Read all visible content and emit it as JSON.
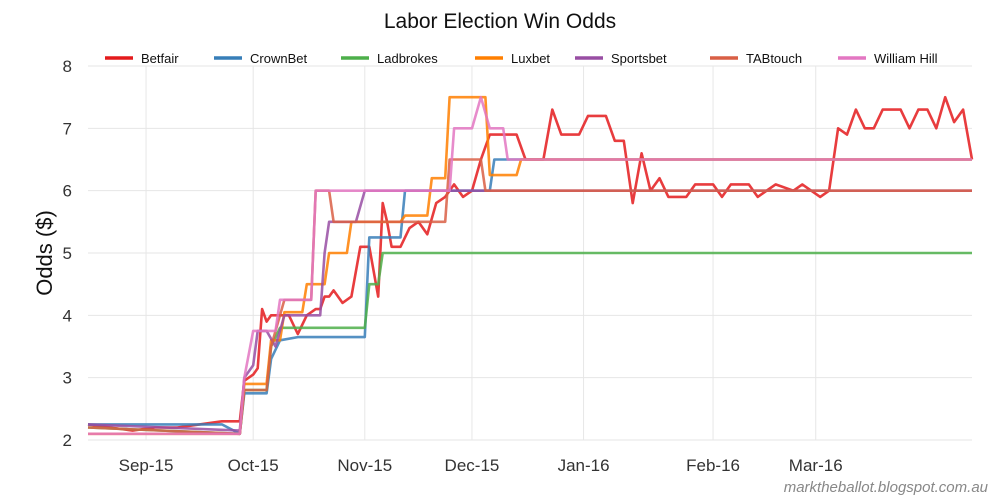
{
  "chart_data": {
    "type": "line",
    "title": "Labor Election Win Odds",
    "xlabel": "",
    "ylabel": "Odds ($)",
    "ylim": [
      2,
      8
    ],
    "yticks": [
      2,
      3,
      4,
      5,
      6,
      7,
      8
    ],
    "ytick_labels": [
      "2",
      "3",
      "4",
      "5",
      "6",
      "7",
      "8"
    ],
    "xlim": [
      0,
      198
    ],
    "xticks": [
      13,
      37,
      62,
      86,
      111,
      140,
      163
    ],
    "xtick_labels": [
      "Sep-15",
      "Oct-15",
      "Nov-15",
      "Dec-15",
      "Jan-16",
      "Feb-16",
      "Mar-16"
    ],
    "grid": true,
    "legend_position": "top",
    "source": "marktheballot.blogspot.com.au",
    "series": [
      {
        "name": "Betfair",
        "color": "#e41a1c",
        "points": [
          [
            0,
            2.25
          ],
          [
            5,
            2.2
          ],
          [
            10,
            2.15
          ],
          [
            15,
            2.2
          ],
          [
            20,
            2.2
          ],
          [
            25,
            2.25
          ],
          [
            30,
            2.3
          ],
          [
            34,
            2.3
          ],
          [
            35,
            2.95
          ],
          [
            36,
            3.0
          ],
          [
            37,
            3.05
          ],
          [
            38,
            3.15
          ],
          [
            39,
            4.1
          ],
          [
            40,
            3.9
          ],
          [
            41,
            4.0
          ],
          [
            45,
            4.0
          ],
          [
            47,
            3.7
          ],
          [
            49,
            4.0
          ],
          [
            51,
            4.1
          ],
          [
            52,
            4.1
          ],
          [
            53,
            4.3
          ],
          [
            54,
            4.3
          ],
          [
            55,
            4.4
          ],
          [
            57,
            4.2
          ],
          [
            59,
            4.3
          ],
          [
            61,
            5.1
          ],
          [
            63,
            5.1
          ],
          [
            65,
            4.3
          ],
          [
            66,
            5.8
          ],
          [
            67,
            5.5
          ],
          [
            68,
            5.1
          ],
          [
            70,
            5.1
          ],
          [
            72,
            5.4
          ],
          [
            74,
            5.5
          ],
          [
            76,
            5.3
          ],
          [
            78,
            5.8
          ],
          [
            80,
            5.9
          ],
          [
            82,
            6.1
          ],
          [
            84,
            5.9
          ],
          [
            86,
            6.0
          ],
          [
            88,
            6.5
          ],
          [
            90,
            6.9
          ],
          [
            96,
            6.9
          ],
          [
            98,
            6.5
          ],
          [
            102,
            6.5
          ],
          [
            104,
            7.3
          ],
          [
            106,
            6.9
          ],
          [
            110,
            6.9
          ],
          [
            112,
            7.2
          ],
          [
            116,
            7.2
          ],
          [
            118,
            6.8
          ],
          [
            120,
            6.8
          ],
          [
            122,
            5.8
          ],
          [
            124,
            6.6
          ],
          [
            126,
            6.0
          ],
          [
            128,
            6.2
          ],
          [
            130,
            5.9
          ],
          [
            134,
            5.9
          ],
          [
            136,
            6.1
          ],
          [
            140,
            6.1
          ],
          [
            142,
            5.9
          ],
          [
            144,
            6.1
          ],
          [
            148,
            6.1
          ],
          [
            150,
            5.9
          ],
          [
            154,
            6.1
          ],
          [
            158,
            6.0
          ],
          [
            160,
            6.1
          ],
          [
            164,
            5.9
          ],
          [
            166,
            6.0
          ],
          [
            168,
            7.0
          ],
          [
            170,
            6.9
          ],
          [
            172,
            7.3
          ],
          [
            174,
            7.0
          ],
          [
            176,
            7.0
          ],
          [
            178,
            7.3
          ],
          [
            182,
            7.3
          ],
          [
            184,
            7.0
          ],
          [
            186,
            7.3
          ],
          [
            188,
            7.3
          ],
          [
            190,
            7.0
          ],
          [
            192,
            7.5
          ],
          [
            194,
            7.1
          ],
          [
            196,
            7.3
          ],
          [
            198,
            6.5
          ]
        ]
      },
      {
        "name": "CrownBet",
        "color": "#377eb8",
        "points": [
          [
            0,
            2.25
          ],
          [
            30,
            2.25
          ],
          [
            34,
            2.1
          ],
          [
            35,
            2.75
          ],
          [
            40,
            2.75
          ],
          [
            41,
            3.3
          ],
          [
            43,
            3.6
          ],
          [
            47,
            3.65
          ],
          [
            62,
            3.65
          ],
          [
            63,
            5.25
          ],
          [
            70,
            5.25
          ],
          [
            71,
            6.0
          ],
          [
            90,
            6.0
          ],
          [
            91,
            6.5
          ],
          [
            198,
            6.5
          ]
        ]
      },
      {
        "name": "Ladbrokes",
        "color": "#4daf4a",
        "points": [
          [
            0,
            2.2
          ],
          [
            34,
            2.1
          ],
          [
            35,
            2.8
          ],
          [
            40,
            2.8
          ],
          [
            41,
            3.5
          ],
          [
            43,
            3.8
          ],
          [
            62,
            3.8
          ],
          [
            63,
            4.5
          ],
          [
            65,
            4.5
          ],
          [
            66,
            5.0
          ],
          [
            198,
            5.0
          ]
        ]
      },
      {
        "name": "Luxbet",
        "color": "#ff7f00",
        "points": [
          [
            0,
            2.1
          ],
          [
            34,
            2.1
          ],
          [
            35,
            2.9
          ],
          [
            40,
            2.9
          ],
          [
            41,
            3.6
          ],
          [
            43,
            3.6
          ],
          [
            44,
            4.05
          ],
          [
            48,
            4.05
          ],
          [
            49,
            4.5
          ],
          [
            53,
            4.5
          ],
          [
            54,
            5.0
          ],
          [
            58,
            5.0
          ],
          [
            59,
            5.5
          ],
          [
            70,
            5.5
          ],
          [
            71,
            5.6
          ],
          [
            76,
            5.6
          ],
          [
            77,
            6.2
          ],
          [
            80,
            6.2
          ],
          [
            81,
            7.5
          ],
          [
            89,
            7.5
          ],
          [
            90,
            6.25
          ],
          [
            96,
            6.25
          ],
          [
            97,
            6.5
          ],
          [
            198,
            6.5
          ]
        ]
      },
      {
        "name": "Sportsbet",
        "color": "#984ea3",
        "points": [
          [
            0,
            2.25
          ],
          [
            34,
            2.15
          ],
          [
            35,
            3.0
          ],
          [
            37,
            3.2
          ],
          [
            38,
            3.75
          ],
          [
            40,
            3.75
          ],
          [
            42,
            3.5
          ],
          [
            44,
            4.0
          ],
          [
            52,
            4.0
          ],
          [
            53,
            5.0
          ],
          [
            54,
            5.5
          ],
          [
            58,
            5.5
          ],
          [
            60,
            5.5
          ],
          [
            62,
            6.0
          ],
          [
            198,
            6.0
          ]
        ]
      },
      {
        "name": "TABtouch",
        "color": "#d95f45",
        "points": [
          [
            0,
            2.2
          ],
          [
            34,
            2.1
          ],
          [
            35,
            2.8
          ],
          [
            40,
            2.8
          ],
          [
            41,
            3.5
          ],
          [
            44,
            4.25
          ],
          [
            50,
            4.25
          ],
          [
            51,
            6.0
          ],
          [
            54,
            6.0
          ],
          [
            55,
            5.5
          ],
          [
            80,
            5.5
          ],
          [
            81,
            6.5
          ],
          [
            88,
            6.5
          ],
          [
            89,
            6.0
          ],
          [
            198,
            6.0
          ]
        ]
      },
      {
        "name": "William Hill",
        "color": "#e377c2",
        "points": [
          [
            0,
            2.1
          ],
          [
            34,
            2.1
          ],
          [
            35,
            3.0
          ],
          [
            37,
            3.75
          ],
          [
            42,
            3.75
          ],
          [
            43,
            4.25
          ],
          [
            50,
            4.25
          ],
          [
            51,
            6.0
          ],
          [
            81,
            6.0
          ],
          [
            82,
            7.0
          ],
          [
            86,
            7.0
          ],
          [
            88,
            7.5
          ],
          [
            90,
            7.0
          ],
          [
            93,
            7.0
          ],
          [
            94,
            6.5
          ],
          [
            198,
            6.5
          ]
        ]
      }
    ]
  }
}
